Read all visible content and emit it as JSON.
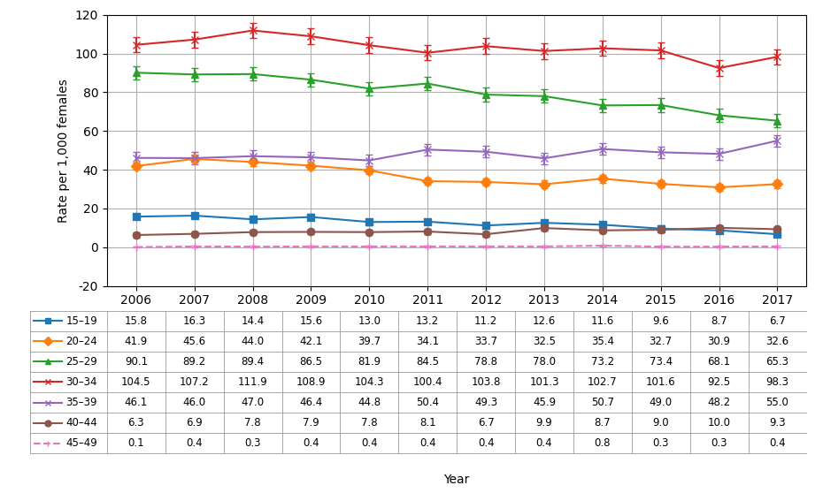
{
  "chart_data": {
    "type": "line",
    "x": [
      2006,
      2007,
      2008,
      2009,
      2010,
      2011,
      2012,
      2013,
      2014,
      2015,
      2016,
      2017
    ],
    "xlabel": "Year",
    "ylabel": "Rate per 1,000 females",
    "xlim": [
      2005.5,
      2017.5
    ],
    "xticks": [
      2006,
      2007,
      2008,
      2009,
      2010,
      2011,
      2012,
      2013,
      2014,
      2015,
      2016,
      2017
    ],
    "ylim": [
      -20,
      120
    ],
    "yticks": [
      -20,
      0,
      20,
      40,
      60,
      80,
      100,
      120
    ],
    "grid": true,
    "series": [
      {
        "name": "15–19",
        "marker": "square",
        "line_style": "solid",
        "yerr": 1.5,
        "values": [
          15.8,
          16.3,
          14.4,
          15.6,
          13.0,
          13.2,
          11.2,
          12.6,
          11.6,
          9.6,
          8.7,
          6.7
        ]
      },
      {
        "name": "20–24",
        "marker": "diamond",
        "line_style": "solid",
        "yerr": 2.0,
        "values": [
          41.9,
          45.6,
          44.0,
          42.1,
          39.7,
          34.1,
          33.7,
          32.5,
          35.4,
          32.7,
          30.9,
          32.6
        ]
      },
      {
        "name": "25–29",
        "marker": "triangle",
        "line_style": "solid",
        "yerr": 3.5,
        "values": [
          90.1,
          89.2,
          89.4,
          86.5,
          81.9,
          84.5,
          78.8,
          78.0,
          73.2,
          73.4,
          68.1,
          65.3
        ]
      },
      {
        "name": "30–34",
        "marker": "x",
        "line_style": "solid",
        "yerr": 4.0,
        "values": [
          104.5,
          107.2,
          111.9,
          108.9,
          104.3,
          100.4,
          103.8,
          101.3,
          102.7,
          101.6,
          92.5,
          98.3
        ]
      },
      {
        "name": "35–39",
        "marker": "x",
        "line_style": "solid",
        "yerr": 3.0,
        "values": [
          46.1,
          46.0,
          47.0,
          46.4,
          44.8,
          50.4,
          49.3,
          45.9,
          50.7,
          49.0,
          48.2,
          55.0
        ]
      },
      {
        "name": "40–44",
        "marker": "circle",
        "line_style": "solid",
        "yerr": 1.2,
        "values": [
          6.3,
          6.9,
          7.8,
          7.9,
          7.8,
          8.1,
          6.7,
          9.9,
          8.7,
          9.0,
          10.0,
          9.3
        ]
      },
      {
        "name": "45–49",
        "marker": "vline",
        "line_style": "dashed",
        "yerr": 0.3,
        "values": [
          0.1,
          0.4,
          0.3,
          0.4,
          0.4,
          0.4,
          0.4,
          0.4,
          0.8,
          0.3,
          0.3,
          0.4
        ]
      }
    ]
  }
}
